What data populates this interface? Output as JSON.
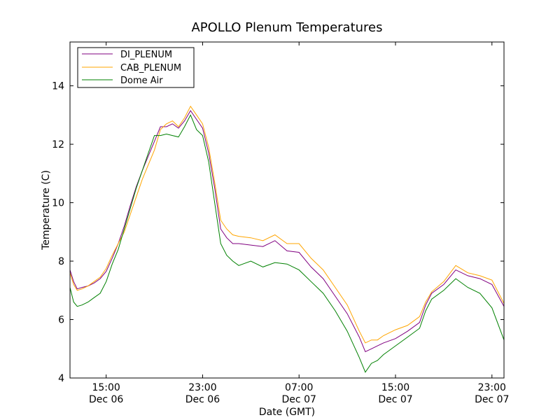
{
  "chart_data": {
    "type": "line",
    "title": "APOLLO Plenum Temperatures",
    "xlabel": "Date (GMT)",
    "ylabel": "Temperature (C)",
    "xlim": [
      0,
      36
    ],
    "ylim": [
      4,
      15.5
    ],
    "grid": false,
    "legend_position": "top-left",
    "x_ticks": [
      {
        "value": 3,
        "time": "15:00",
        "date": "Dec 06"
      },
      {
        "value": 11,
        "time": "23:00",
        "date": "Dec 06"
      },
      {
        "value": 19,
        "time": "07:00",
        "date": "Dec 07"
      },
      {
        "value": 27,
        "time": "15:00",
        "date": "Dec 07"
      },
      {
        "value": 35,
        "time": "23:00",
        "date": "Dec 07"
      }
    ],
    "y_ticks": [
      4,
      6,
      8,
      10,
      12,
      14
    ],
    "x_hours_since": "12:00 Dec 06",
    "series": [
      {
        "name": "DI_PLENUM",
        "color": "#800080",
        "x": [
          0,
          0.3,
          0.6,
          1.0,
          1.5,
          2.0,
          2.5,
          3.0,
          3.5,
          4.0,
          4.5,
          5.0,
          5.5,
          6.0,
          6.5,
          7.0,
          7.5,
          8.0,
          8.5,
          9.0,
          9.5,
          10.0,
          10.5,
          11.0,
          11.5,
          12.0,
          12.5,
          13.0,
          13.5,
          14.0,
          15.0,
          16.0,
          17.0,
          18.0,
          19.0,
          20.0,
          21.0,
          22.0,
          23.0,
          24.0,
          24.5,
          25.0,
          25.5,
          26.0,
          27.0,
          28.0,
          29.0,
          29.5,
          30.0,
          31.0,
          32.0,
          33.0,
          34.0,
          35.0,
          36.0
        ],
        "values": [
          7.7,
          7.3,
          7.05,
          7.1,
          7.15,
          7.25,
          7.4,
          7.65,
          8.1,
          8.6,
          9.2,
          9.9,
          10.55,
          11.1,
          11.6,
          12.1,
          12.6,
          12.6,
          12.7,
          12.55,
          12.8,
          13.15,
          12.85,
          12.55,
          11.7,
          10.5,
          9.1,
          8.8,
          8.6,
          8.6,
          8.55,
          8.5,
          8.7,
          8.35,
          8.3,
          7.8,
          7.4,
          6.8,
          6.2,
          5.4,
          4.9,
          5.0,
          5.1,
          5.2,
          5.35,
          5.6,
          5.9,
          6.5,
          6.9,
          7.2,
          7.7,
          7.5,
          7.4,
          7.2,
          6.45
        ]
      },
      {
        "name": "CAB_PLENUM",
        "color": "#ffa500",
        "x": [
          0,
          0.3,
          0.6,
          1.0,
          1.5,
          2.0,
          2.5,
          3.0,
          3.5,
          4.0,
          4.5,
          5.0,
          5.5,
          6.0,
          6.5,
          7.0,
          7.5,
          8.0,
          8.5,
          9.0,
          9.5,
          10.0,
          10.5,
          11.0,
          11.5,
          12.0,
          12.5,
          13.0,
          13.5,
          14.0,
          15.0,
          16.0,
          17.0,
          18.0,
          19.0,
          20.0,
          21.0,
          22.0,
          23.0,
          24.0,
          24.5,
          25.0,
          25.5,
          26.0,
          27.0,
          28.0,
          29.0,
          29.5,
          30.0,
          31.0,
          32.0,
          33.0,
          34.0,
          35.0,
          36.0
        ],
        "values": [
          7.6,
          7.2,
          7.0,
          7.05,
          7.15,
          7.3,
          7.45,
          7.75,
          8.2,
          8.6,
          9.0,
          9.6,
          10.2,
          10.8,
          11.3,
          11.8,
          12.5,
          12.7,
          12.8,
          12.6,
          12.9,
          13.3,
          13.0,
          12.7,
          11.9,
          10.7,
          9.4,
          9.1,
          8.9,
          8.85,
          8.8,
          8.7,
          8.9,
          8.6,
          8.6,
          8.1,
          7.7,
          7.1,
          6.5,
          5.6,
          5.2,
          5.3,
          5.3,
          5.45,
          5.65,
          5.8,
          6.1,
          6.6,
          6.95,
          7.3,
          7.85,
          7.6,
          7.5,
          7.35,
          6.55
        ]
      },
      {
        "name": "Dome Air",
        "color": "#008000",
        "x": [
          0,
          0.3,
          0.6,
          1.0,
          1.5,
          2.0,
          2.5,
          3.0,
          3.5,
          4.0,
          4.5,
          5.0,
          5.5,
          6.0,
          6.5,
          7.0,
          7.5,
          8.0,
          8.5,
          9.0,
          9.5,
          10.0,
          10.5,
          11.0,
          11.5,
          12.0,
          12.5,
          13.0,
          13.5,
          14.0,
          15.0,
          16.0,
          17.0,
          18.0,
          19.0,
          20.0,
          21.0,
          22.0,
          23.0,
          24.0,
          24.5,
          25.0,
          25.5,
          26.0,
          27.0,
          28.0,
          29.0,
          29.5,
          30.0,
          31.0,
          32.0,
          33.0,
          34.0,
          35.0,
          36.0
        ],
        "values": [
          7.1,
          6.6,
          6.45,
          6.5,
          6.6,
          6.75,
          6.9,
          7.3,
          7.9,
          8.4,
          9.1,
          9.8,
          10.5,
          11.1,
          11.7,
          12.3,
          12.3,
          12.35,
          12.3,
          12.25,
          12.6,
          13.0,
          12.5,
          12.3,
          11.4,
          10.0,
          8.6,
          8.2,
          8.0,
          7.85,
          8.0,
          7.8,
          7.95,
          7.9,
          7.7,
          7.3,
          6.9,
          6.3,
          5.6,
          4.7,
          4.2,
          4.5,
          4.6,
          4.8,
          5.1,
          5.4,
          5.7,
          6.3,
          6.7,
          7.0,
          7.4,
          7.1,
          6.9,
          6.4,
          5.3
        ]
      }
    ]
  }
}
